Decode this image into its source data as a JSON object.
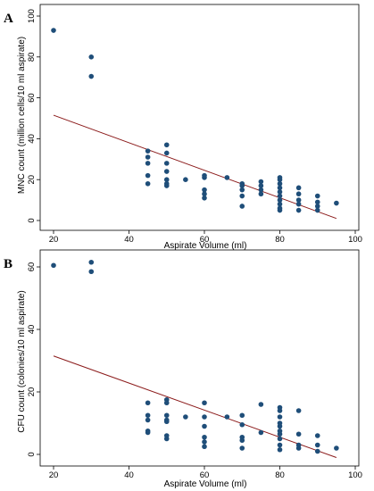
{
  "colors": {
    "point": "#1f4e79",
    "fit_line": "#8b1a1a",
    "background": "#ffffff"
  },
  "chart_data": [
    {
      "type": "scatter",
      "panel": "A",
      "xlabel": "Aspirate Volume (ml)",
      "ylabel": "MNC count (million cells/10 ml aspirate)",
      "xlim": [
        20,
        100
      ],
      "ylim": [
        0,
        100
      ],
      "xticks": [
        20,
        40,
        60,
        80,
        100
      ],
      "yticks": [
        0,
        20,
        40,
        60,
        80,
        100
      ],
      "grid": false,
      "points": [
        [
          20,
          93
        ],
        [
          30,
          80
        ],
        [
          30,
          70.5
        ],
        [
          45,
          34
        ],
        [
          45,
          31
        ],
        [
          45,
          28
        ],
        [
          45,
          22
        ],
        [
          45,
          18
        ],
        [
          50,
          37
        ],
        [
          50,
          33
        ],
        [
          50,
          28
        ],
        [
          50,
          24
        ],
        [
          50,
          20
        ],
        [
          50,
          18
        ],
        [
          50,
          17
        ],
        [
          55,
          20
        ],
        [
          60,
          22
        ],
        [
          60,
          21
        ],
        [
          60,
          15
        ],
        [
          60,
          13
        ],
        [
          60,
          11
        ],
        [
          66,
          21
        ],
        [
          70,
          18
        ],
        [
          70,
          17
        ],
        [
          70,
          15
        ],
        [
          70,
          12
        ],
        [
          70,
          7
        ],
        [
          75,
          19
        ],
        [
          75,
          17
        ],
        [
          75,
          15
        ],
        [
          75,
          13
        ],
        [
          80,
          21
        ],
        [
          80,
          20
        ],
        [
          80,
          18
        ],
        [
          80,
          16
        ],
        [
          80,
          14
        ],
        [
          80,
          12
        ],
        [
          80,
          10
        ],
        [
          80,
          8
        ],
        [
          80,
          6
        ],
        [
          80,
          5
        ],
        [
          85,
          16
        ],
        [
          85,
          13
        ],
        [
          85,
          10
        ],
        [
          85,
          8
        ],
        [
          85,
          5
        ],
        [
          90,
          12
        ],
        [
          90,
          9
        ],
        [
          90,
          7
        ],
        [
          90,
          5
        ],
        [
          95,
          8.5
        ]
      ],
      "fit_line": {
        "x": [
          20,
          95
        ],
        "y": [
          51.5,
          1
        ]
      }
    },
    {
      "type": "scatter",
      "panel": "B",
      "xlabel": "Aspirate Volume (ml)",
      "ylabel": "CFU count (colonies/10 ml aspirate)",
      "xlim": [
        20,
        100
      ],
      "ylim": [
        0,
        60
      ],
      "xticks": [
        20,
        40,
        60,
        80,
        100
      ],
      "yticks": [
        0,
        20,
        40,
        60
      ],
      "grid": false,
      "points": [
        [
          20,
          60.5
        ],
        [
          30,
          61.5
        ],
        [
          30,
          58.5
        ],
        [
          45,
          16.5
        ],
        [
          45,
          12.5
        ],
        [
          45,
          11
        ],
        [
          45,
          7.5
        ],
        [
          45,
          7
        ],
        [
          50,
          17.5
        ],
        [
          50,
          16.5
        ],
        [
          50,
          12.5
        ],
        [
          50,
          11
        ],
        [
          50,
          10.5
        ],
        [
          50,
          6
        ],
        [
          50,
          5
        ],
        [
          55,
          12
        ],
        [
          60,
          16.5
        ],
        [
          60,
          12
        ],
        [
          60,
          9
        ],
        [
          60,
          5.5
        ],
        [
          60,
          4
        ],
        [
          60,
          2.5
        ],
        [
          66,
          12
        ],
        [
          70,
          12.5
        ],
        [
          70,
          9.5
        ],
        [
          70,
          5.5
        ],
        [
          70,
          4.5
        ],
        [
          70,
          2
        ],
        [
          75,
          16
        ],
        [
          75,
          7
        ],
        [
          80,
          15
        ],
        [
          80,
          14
        ],
        [
          80,
          12
        ],
        [
          80,
          10
        ],
        [
          80,
          9
        ],
        [
          80,
          7.5
        ],
        [
          80,
          6.5
        ],
        [
          80,
          5
        ],
        [
          80,
          3
        ],
        [
          80,
          1.5
        ],
        [
          85,
          14
        ],
        [
          85,
          6.5
        ],
        [
          85,
          3
        ],
        [
          85,
          2
        ],
        [
          90,
          6
        ],
        [
          90,
          3
        ],
        [
          90,
          1
        ],
        [
          95,
          2
        ]
      ],
      "fit_line": {
        "x": [
          20,
          95
        ],
        "y": [
          31.5,
          -1
        ]
      }
    }
  ]
}
